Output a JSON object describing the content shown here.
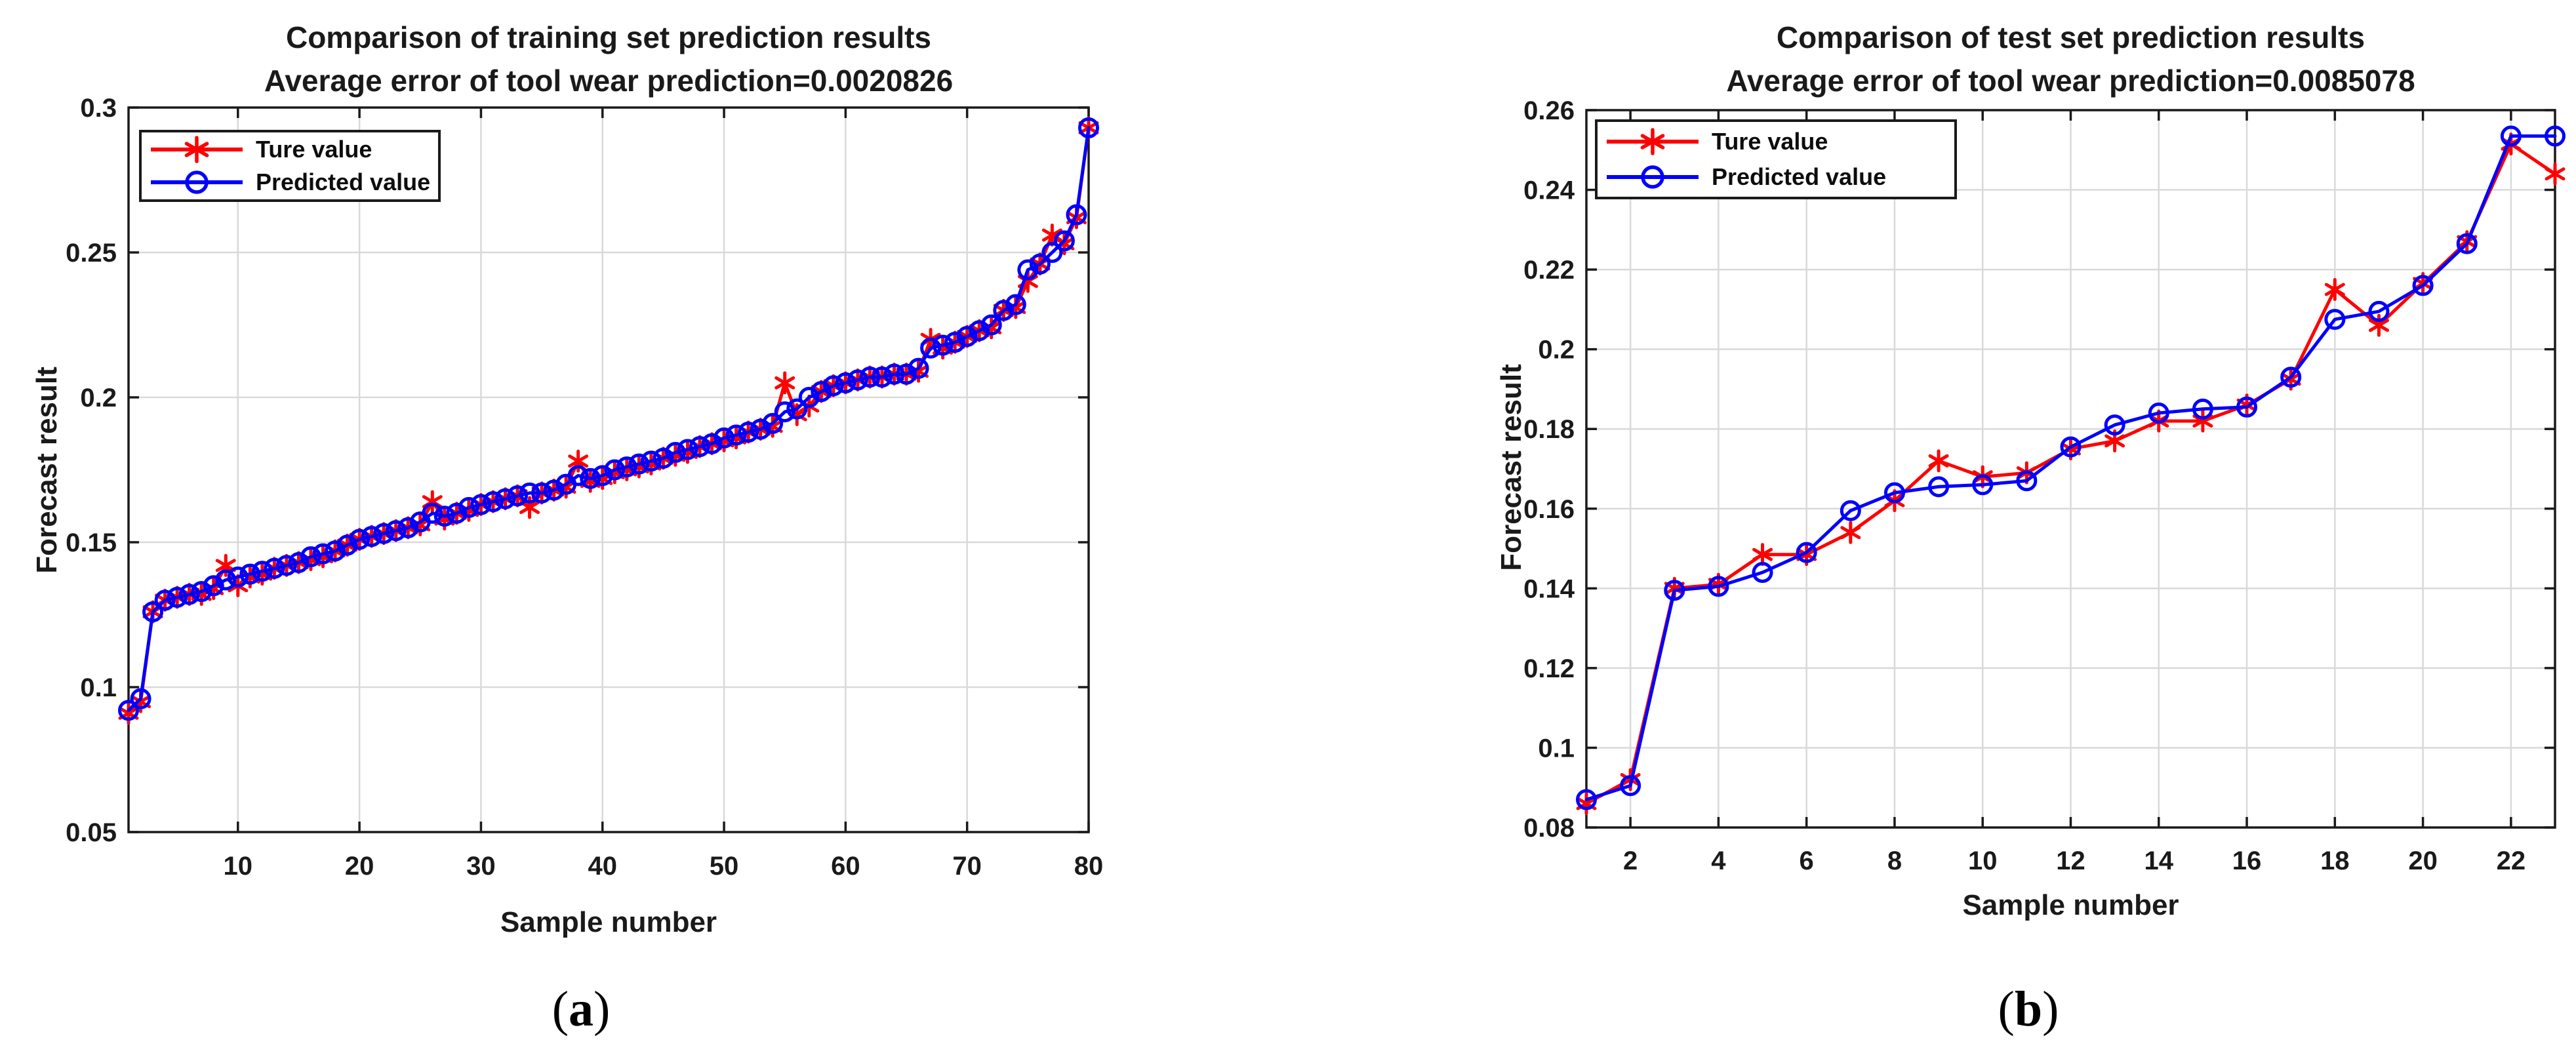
{
  "colors": {
    "true_series": "#ff0000",
    "predicted_series": "#0000ff",
    "axis": "#1a1a1a",
    "grid": "#d9d9d9",
    "background": "#ffffff"
  },
  "chart_data": [
    {
      "type": "line",
      "title": "Comparison of training set prediction results",
      "subtitle": "Average error of tool wear prediction=0.0020826",
      "xlabel": "Sample number",
      "ylabel": "Forecast result",
      "caption": {
        "open": "(",
        "letter": "a",
        "close": ")"
      },
      "x_start": 1,
      "xlim": [
        1,
        80
      ],
      "ylim": [
        0.05,
        0.3
      ],
      "xticks": [
        10,
        20,
        30,
        40,
        50,
        60,
        70,
        80
      ],
      "yticks": [
        0.05,
        0.1,
        0.15,
        0.2,
        0.25,
        0.3
      ],
      "grid": true,
      "legend_position": "top-left",
      "series": [
        {
          "name": "Ture value",
          "color": "#ff0000",
          "marker": "asterisk",
          "values": [
            0.091,
            0.095,
            0.126,
            0.13,
            0.131,
            0.132,
            0.132,
            0.134,
            0.142,
            0.135,
            0.138,
            0.139,
            0.141,
            0.142,
            0.143,
            0.144,
            0.145,
            0.147,
            0.149,
            0.151,
            0.152,
            0.153,
            0.154,
            0.155,
            0.156,
            0.164,
            0.158,
            0.16,
            0.161,
            0.163,
            0.164,
            0.165,
            0.166,
            0.162,
            0.167,
            0.168,
            0.169,
            0.178,
            0.171,
            0.172,
            0.174,
            0.175,
            0.176,
            0.177,
            0.179,
            0.18,
            0.181,
            0.183,
            0.184,
            0.185,
            0.186,
            0.188,
            0.189,
            0.19,
            0.205,
            0.194,
            0.197,
            0.202,
            0.204,
            0.205,
            0.206,
            0.207,
            0.207,
            0.208,
            0.208,
            0.209,
            0.22,
            0.217,
            0.219,
            0.221,
            0.223,
            0.224,
            0.23,
            0.231,
            0.24,
            0.246,
            0.256,
            0.253,
            0.262,
            0.293
          ]
        },
        {
          "name": "Predicted value",
          "color": "#0000ff",
          "marker": "circle",
          "values": [
            0.092,
            0.096,
            0.126,
            0.13,
            0.131,
            0.132,
            0.133,
            0.135,
            0.137,
            0.138,
            0.139,
            0.14,
            0.141,
            0.142,
            0.143,
            0.145,
            0.146,
            0.147,
            0.149,
            0.151,
            0.152,
            0.153,
            0.154,
            0.155,
            0.157,
            0.16,
            0.159,
            0.16,
            0.162,
            0.163,
            0.164,
            0.165,
            0.166,
            0.167,
            0.167,
            0.168,
            0.17,
            0.173,
            0.172,
            0.173,
            0.175,
            0.176,
            0.177,
            0.178,
            0.179,
            0.181,
            0.182,
            0.183,
            0.184,
            0.186,
            0.187,
            0.188,
            0.189,
            0.191,
            0.195,
            0.196,
            0.2,
            0.202,
            0.204,
            0.205,
            0.206,
            0.207,
            0.207,
            0.208,
            0.208,
            0.21,
            0.217,
            0.218,
            0.219,
            0.221,
            0.223,
            0.225,
            0.23,
            0.232,
            0.244,
            0.246,
            0.25,
            0.254,
            0.263,
            0.293
          ]
        }
      ]
    },
    {
      "type": "line",
      "title": "Comparison of test set prediction results",
      "subtitle": "Average error of tool wear prediction=0.0085078",
      "xlabel": "Sample number",
      "ylabel": "Forecast result",
      "caption": {
        "open": "(",
        "letter": "b",
        "close": ")"
      },
      "x_start": 1,
      "xlim": [
        1,
        23
      ],
      "ylim": [
        0.08,
        0.26
      ],
      "xticks": [
        2,
        4,
        6,
        8,
        10,
        12,
        14,
        16,
        18,
        20,
        22
      ],
      "yticks": [
        0.08,
        0.1,
        0.12,
        0.14,
        0.16,
        0.18,
        0.2,
        0.22,
        0.24,
        0.26
      ],
      "grid": true,
      "legend_position": "top-left",
      "series": [
        {
          "name": "Ture value",
          "color": "#ff0000",
          "marker": "asterisk",
          "values": [
            0.086,
            0.092,
            0.14,
            0.141,
            0.1485,
            0.1485,
            0.154,
            0.162,
            0.172,
            0.168,
            0.169,
            0.175,
            0.177,
            0.182,
            0.182,
            0.186,
            0.1925,
            0.215,
            0.206,
            0.2165,
            0.227,
            0.2515,
            0.244
          ]
        },
        {
          "name": "Predicted value",
          "color": "#0000ff",
          "marker": "circle",
          "values": [
            0.087,
            0.0905,
            0.1395,
            0.1405,
            0.144,
            0.149,
            0.1595,
            0.164,
            0.1655,
            0.166,
            0.167,
            0.1755,
            0.181,
            0.184,
            0.185,
            0.1855,
            0.193,
            0.2075,
            0.2095,
            0.216,
            0.2265,
            0.2535,
            0.2535
          ]
        }
      ]
    }
  ]
}
